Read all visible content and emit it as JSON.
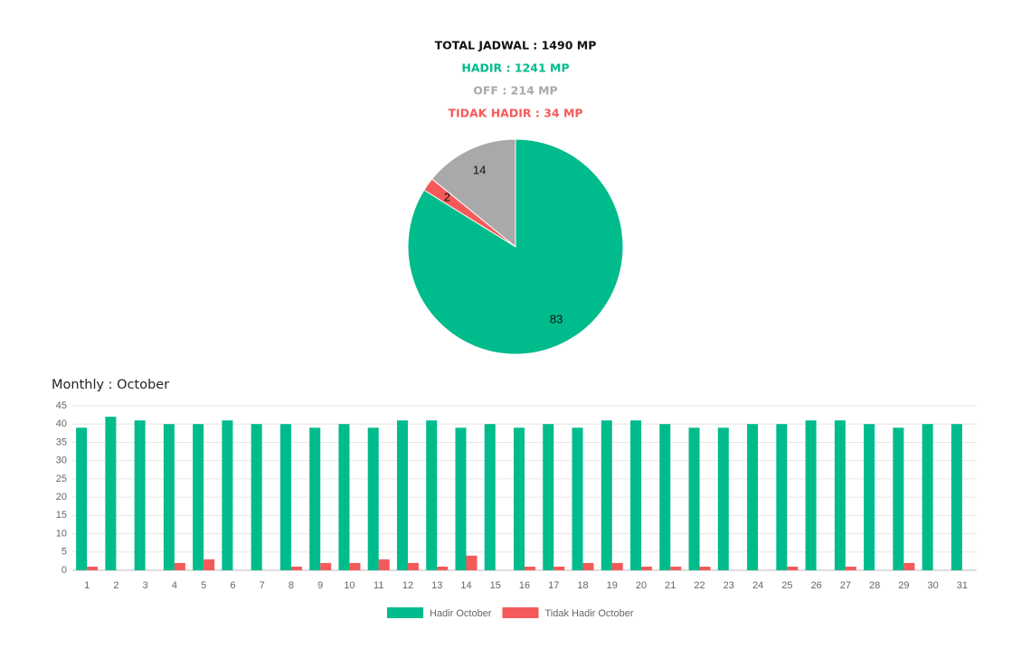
{
  "summary": {
    "total": "TOTAL JADWAL : 1490 MP",
    "hadir": "HADIR : 1241 MP",
    "off": "OFF : 214 MP",
    "tidak_hadir": "TIDAK HADIR : 34 MP"
  },
  "chart_data": [
    {
      "type": "pie",
      "values": [
        83,
        2,
        14
      ],
      "colors": [
        "#00bb8b",
        "#f55a5a",
        "#a9a9a9"
      ]
    },
    {
      "type": "bar",
      "title": "Monthly : October",
      "categories": [
        "1",
        "2",
        "3",
        "4",
        "5",
        "6",
        "7",
        "8",
        "9",
        "10",
        "11",
        "12",
        "13",
        "14",
        "15",
        "16",
        "17",
        "18",
        "19",
        "20",
        "21",
        "22",
        "23",
        "24",
        "25",
        "26",
        "27",
        "28",
        "29",
        "30",
        "31"
      ],
      "series": [
        {
          "name": "Hadir October",
          "color": "#00bb8b",
          "values": [
            39,
            42,
            41,
            40,
            40,
            41,
            40,
            40,
            39,
            40,
            39,
            41,
            41,
            39,
            40,
            39,
            40,
            39,
            41,
            41,
            40,
            39,
            39,
            40,
            40,
            41,
            41,
            40,
            39,
            40,
            40
          ]
        },
        {
          "name": "Tidak Hadir October",
          "color": "#f55a5a",
          "values": [
            1,
            0,
            0,
            2,
            3,
            0,
            0,
            1,
            2,
            2,
            3,
            2,
            1,
            4,
            0,
            1,
            1,
            2,
            2,
            1,
            1,
            1,
            0,
            0,
            1,
            0,
            1,
            0,
            2,
            0,
            0
          ]
        }
      ],
      "ylim": [
        0,
        45
      ],
      "yticks": [
        0,
        5,
        10,
        15,
        20,
        25,
        30,
        35,
        40,
        45
      ],
      "grid": true
    }
  ]
}
